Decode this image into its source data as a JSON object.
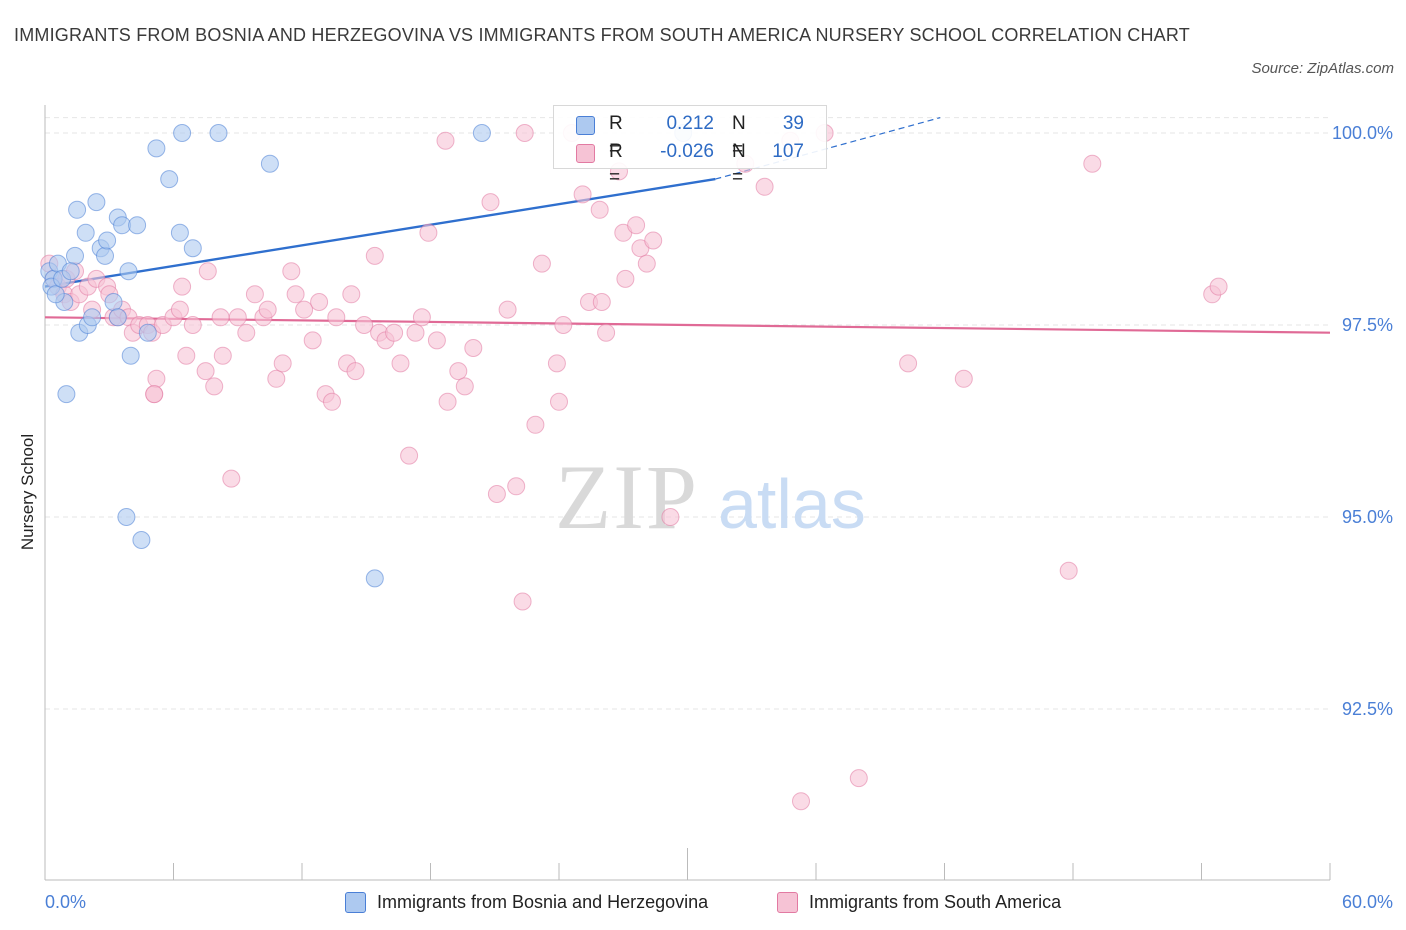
{
  "title": "IMMIGRANTS FROM BOSNIA AND HERZEGOVINA VS IMMIGRANTS FROM SOUTH AMERICA NURSERY SCHOOL CORRELATION CHART",
  "source": "Source: ZipAtlas.com",
  "watermark": {
    "zip": "ZIP",
    "atlas": "atlas"
  },
  "legend_stats": {
    "r_label": "R =",
    "n_label": "N =",
    "series": [
      {
        "r": "0.212",
        "n": "39"
      },
      {
        "r": "-0.026",
        "n": "107"
      }
    ]
  },
  "chart_data": {
    "type": "scatter",
    "title": "IMMIGRANTS FROM BOSNIA AND HERZEGOVINA VS IMMIGRANTS FROM SOUTH AMERICA NURSERY SCHOOL CORRELATION CHART",
    "xlabel": "",
    "ylabel": "Nursery School",
    "xlim": [
      0,
      60
    ],
    "ylim": [
      90.1,
      100.3
    ],
    "x_tick_labels": [
      "0.0%",
      "60.0%"
    ],
    "y_ticks": [
      92.5,
      95.0,
      97.5,
      100.0
    ],
    "y_tick_labels": [
      "92.5%",
      "95.0%",
      "97.5%",
      "100.0%"
    ],
    "grid": true,
    "legend_position": "bottom",
    "series": [
      {
        "name": "Immigrants from Bosnia and Herzegovina",
        "color": "#4a7fd6",
        "fill": "#adc9f0",
        "r": 0.212,
        "n": 39,
        "trend": {
          "x": [
            0,
            31.3
          ],
          "y": [
            98.0,
            99.4
          ],
          "dashed_to": {
            "x": 41.8,
            "y": 100.2
          }
        },
        "points": [
          [
            0.2,
            98.2
          ],
          [
            0.4,
            98.1
          ],
          [
            0.6,
            98.3
          ],
          [
            0.9,
            97.8
          ],
          [
            1.0,
            96.6
          ],
          [
            1.4,
            98.4
          ],
          [
            1.5,
            99.0
          ],
          [
            1.6,
            97.4
          ],
          [
            1.9,
            98.7
          ],
          [
            2.0,
            97.5
          ],
          [
            2.4,
            99.1
          ],
          [
            2.6,
            98.5
          ],
          [
            2.8,
            98.4
          ],
          [
            2.9,
            98.6
          ],
          [
            3.2,
            97.8
          ],
          [
            3.4,
            97.6
          ],
          [
            3.4,
            98.9
          ],
          [
            3.6,
            98.8
          ],
          [
            3.8,
            95.0
          ],
          [
            3.9,
            98.2
          ],
          [
            4.0,
            97.1
          ],
          [
            4.3,
            98.8
          ],
          [
            4.5,
            94.7
          ],
          [
            4.8,
            97.4
          ],
          [
            5.2,
            99.8
          ],
          [
            5.8,
            99.4
          ],
          [
            6.3,
            98.7
          ],
          [
            6.4,
            100.0
          ],
          [
            6.9,
            98.5
          ],
          [
            8.1,
            100.0
          ],
          [
            10.5,
            99.6
          ],
          [
            15.4,
            94.2
          ],
          [
            20.4,
            100.0
          ],
          [
            29.8,
            100.0
          ],
          [
            0.3,
            98.0
          ],
          [
            0.5,
            97.9
          ],
          [
            0.8,
            98.1
          ],
          [
            2.2,
            97.6
          ],
          [
            1.2,
            98.2
          ]
        ]
      },
      {
        "name": "Immigrants from South America",
        "color": "#e27aa2",
        "fill": "#f6c3d5",
        "r": -0.026,
        "n": 107,
        "trend": {
          "x": [
            0,
            60
          ],
          "y": [
            97.6,
            97.4
          ]
        },
        "points": [
          [
            0.2,
            98.3
          ],
          [
            0.4,
            98.1
          ],
          [
            0.6,
            98.0
          ],
          [
            0.9,
            97.9
          ],
          [
            1.0,
            98.1
          ],
          [
            1.2,
            97.8
          ],
          [
            1.4,
            98.2
          ],
          [
            1.6,
            97.9
          ],
          [
            2.0,
            98.0
          ],
          [
            2.2,
            97.7
          ],
          [
            2.4,
            98.1
          ],
          [
            2.9,
            98.0
          ],
          [
            3.0,
            97.9
          ],
          [
            3.2,
            97.6
          ],
          [
            3.4,
            97.6
          ],
          [
            3.6,
            97.7
          ],
          [
            3.9,
            97.6
          ],
          [
            4.1,
            97.4
          ],
          [
            4.4,
            97.5
          ],
          [
            4.8,
            97.5
          ],
          [
            5.0,
            97.4
          ],
          [
            5.1,
            96.6
          ],
          [
            5.2,
            96.8
          ],
          [
            5.5,
            97.5
          ],
          [
            6.0,
            97.6
          ],
          [
            6.3,
            97.7
          ],
          [
            6.4,
            98.0
          ],
          [
            6.6,
            97.1
          ],
          [
            6.9,
            97.5
          ],
          [
            7.5,
            96.9
          ],
          [
            7.6,
            98.2
          ],
          [
            7.9,
            96.7
          ],
          [
            8.2,
            97.6
          ],
          [
            8.3,
            97.1
          ],
          [
            8.7,
            95.5
          ],
          [
            9.0,
            97.6
          ],
          [
            9.4,
            97.4
          ],
          [
            9.8,
            97.9
          ],
          [
            10.2,
            97.6
          ],
          [
            10.4,
            97.7
          ],
          [
            10.8,
            96.8
          ],
          [
            11.1,
            97.0
          ],
          [
            11.5,
            98.2
          ],
          [
            11.7,
            97.9
          ],
          [
            12.1,
            97.7
          ],
          [
            12.5,
            97.3
          ],
          [
            12.8,
            97.8
          ],
          [
            13.1,
            96.6
          ],
          [
            13.4,
            96.5
          ],
          [
            13.6,
            97.6
          ],
          [
            14.1,
            97.0
          ],
          [
            14.3,
            97.9
          ],
          [
            14.5,
            96.9
          ],
          [
            14.9,
            97.5
          ],
          [
            15.4,
            98.4
          ],
          [
            15.6,
            97.4
          ],
          [
            15.9,
            97.3
          ],
          [
            16.3,
            97.4
          ],
          [
            16.6,
            97.0
          ],
          [
            17.0,
            95.8
          ],
          [
            17.3,
            97.4
          ],
          [
            17.6,
            97.6
          ],
          [
            17.9,
            98.7
          ],
          [
            18.3,
            97.3
          ],
          [
            18.7,
            99.9
          ],
          [
            18.8,
            96.5
          ],
          [
            19.3,
            96.9
          ],
          [
            19.6,
            96.7
          ],
          [
            20.0,
            97.2
          ],
          [
            20.8,
            99.1
          ],
          [
            21.1,
            95.3
          ],
          [
            21.6,
            97.7
          ],
          [
            22.0,
            95.4
          ],
          [
            22.3,
            93.9
          ],
          [
            22.4,
            100.0
          ],
          [
            22.9,
            96.2
          ],
          [
            23.2,
            98.3
          ],
          [
            23.9,
            97.0
          ],
          [
            24.0,
            96.5
          ],
          [
            24.2,
            97.5
          ],
          [
            24.6,
            100.0
          ],
          [
            25.1,
            99.2
          ],
          [
            25.4,
            97.8
          ],
          [
            25.9,
            99.0
          ],
          [
            26.0,
            97.8
          ],
          [
            26.2,
            97.4
          ],
          [
            26.8,
            99.5
          ],
          [
            27.0,
            98.7
          ],
          [
            27.1,
            98.1
          ],
          [
            27.6,
            98.8
          ],
          [
            27.8,
            98.5
          ],
          [
            28.1,
            98.3
          ],
          [
            28.4,
            98.6
          ],
          [
            29.2,
            95.0
          ],
          [
            32.7,
            99.6
          ],
          [
            33.6,
            99.3
          ],
          [
            34.8,
            99.9
          ],
          [
            35.3,
            91.3
          ],
          [
            36.4,
            100.0
          ],
          [
            38.0,
            91.6
          ],
          [
            40.3,
            97.0
          ],
          [
            42.9,
            96.8
          ],
          [
            47.8,
            94.3
          ],
          [
            48.9,
            99.6
          ],
          [
            54.5,
            97.9
          ],
          [
            54.8,
            98.0
          ],
          [
            5.1,
            96.6
          ]
        ]
      }
    ]
  },
  "axis_labels": {
    "x_min": "0.0%",
    "x_max": "60.0%"
  }
}
